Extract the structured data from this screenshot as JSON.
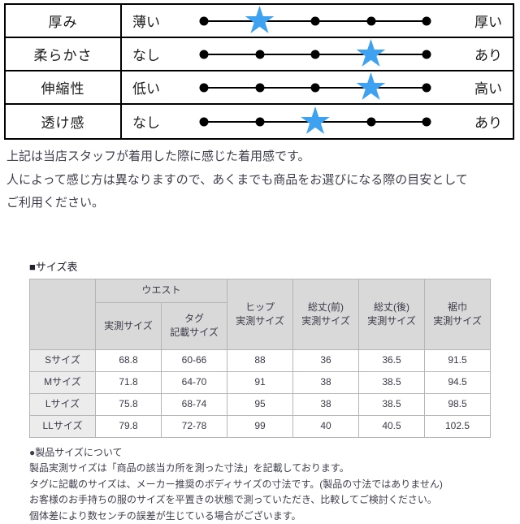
{
  "feel_table": {
    "rows": [
      {
        "label": "厚み",
        "min": "薄い",
        "max": "厚い",
        "star_dot": 2,
        "star_percent": 25
      },
      {
        "label": "柔らかさ",
        "min": "なし",
        "max": "あり",
        "star_dot": 4,
        "star_percent": 75
      },
      {
        "label": "伸縮性",
        "min": "低い",
        "max": "高い",
        "star_dot": 4,
        "star_percent": 75
      },
      {
        "label": "透け感",
        "min": "なし",
        "max": "あり",
        "star_dot": 3,
        "star_percent": 50
      }
    ],
    "dot_count": 5,
    "star_glyph": "★",
    "star_color": "#3fa2f0"
  },
  "intro_note": {
    "line1": "上記は当店スタッフが着用した際に感じた着用感です。",
    "line2": "人によって感じ方は異なりますので、あくまでも商品をお選びになる際の目安として",
    "line3": "ご利用ください。"
  },
  "size_section": {
    "title": "■サイズ表",
    "table": {
      "group_header": "ウエスト",
      "sub_headers": [
        "実測サイズ",
        "タグ\n記載サイズ"
      ],
      "col_headers": [
        "ヒップ\n実測サイズ",
        "総丈(前)\n実測サイズ",
        "総丈(後)\n実測サイズ",
        "裾巾\n実測サイズ"
      ],
      "rows": [
        {
          "label": "Sサイズ",
          "values": [
            "68.8",
            "60-66",
            "88",
            "36",
            "36.5",
            "91.5"
          ]
        },
        {
          "label": "Mサイズ",
          "values": [
            "71.8",
            "64-70",
            "91",
            "38",
            "38.5",
            "94.5"
          ]
        },
        {
          "label": "Lサイズ",
          "values": [
            "75.8",
            "68-74",
            "95",
            "38",
            "38.5",
            "98.5"
          ]
        },
        {
          "label": "LLサイズ",
          "values": [
            "79.8",
            "72-78",
            "99",
            "40",
            "40.5",
            "102.5"
          ]
        }
      ]
    },
    "notes": {
      "heading": "●製品サイズについて",
      "line1": "製品実測サイズは「商品の該当カ所を測った寸法」を記載しております。",
      "line2": "タグに記載のサイズは、メーカー推奨のボディサイズの寸法です。(製品の寸法ではありません)",
      "line3": "お客様のお手持ちの服のサイズを平置きの状態で測っていただき、比較してご検討ください。",
      "line4": "個体差により数センチの誤差が生じている場合がございます。"
    }
  },
  "colors": {
    "star_blue": "#3fa2f0",
    "header_bg": "#d9d9d9",
    "row_label_bg": "#ececec",
    "table_border": "#b5b5b5",
    "text_dark": "#3e3e4c"
  }
}
